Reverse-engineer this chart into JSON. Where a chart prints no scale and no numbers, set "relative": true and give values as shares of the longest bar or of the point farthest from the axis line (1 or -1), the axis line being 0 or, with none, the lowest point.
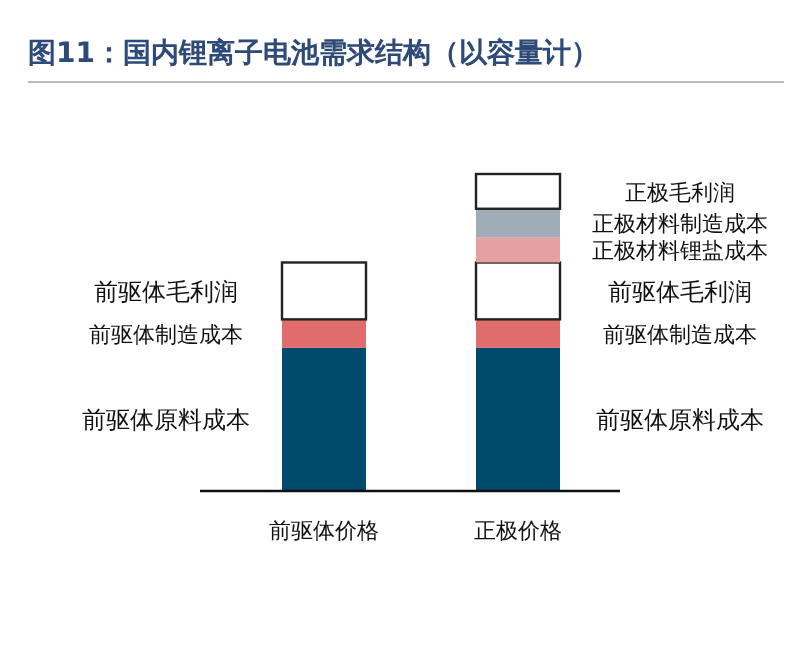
{
  "chart_data": {
    "type": "bar",
    "title": "图11：国内锂离子电池需求结构（以容量计）",
    "categories": [
      "前驱体价格",
      "正极价格"
    ],
    "stacked": true,
    "relative": true,
    "legend": false,
    "series": [
      {
        "name": "前驱体原料成本",
        "color": "#004a6e",
        "values": [
          0.45,
          0.45
        ]
      },
      {
        "name": "前驱体制造成本",
        "color": "#e06c6c",
        "values": [
          0.09,
          0.09
        ]
      },
      {
        "name": "前驱体毛利润",
        "color": "#ffffff",
        "values": [
          0.18,
          0.18
        ]
      },
      {
        "name": "正极材料锂盐成本",
        "color": "#e4a0a2",
        "values": [
          null,
          0.08
        ]
      },
      {
        "name": "正极材料制造成本",
        "color": "#a0adb8",
        "values": [
          null,
          0.09
        ]
      },
      {
        "name": "正极毛利润",
        "color": "#ffffff",
        "values": [
          null,
          0.11
        ]
      }
    ]
  }
}
